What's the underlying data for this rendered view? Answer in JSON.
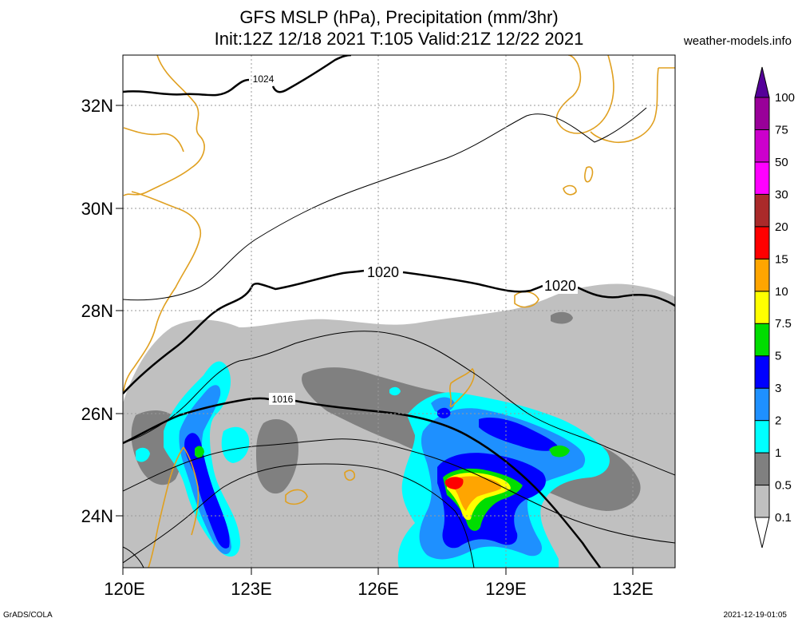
{
  "title_line1": "GFS MSLP (hPa), Precipitation (mm/3hr)",
  "title_line2": "Init:12Z 12/18 2021 T:105 Valid:21Z 12/22 2021",
  "site": "weather-models.info",
  "footer_left": "GrADS/COLA",
  "footer_right": "2021-12-19-01:05",
  "axes": {
    "lat_ticks": [
      "32N",
      "30N",
      "28N",
      "26N",
      "24N"
    ],
    "lon_ticks": [
      "120E",
      "123E",
      "126E",
      "129E",
      "132E"
    ]
  },
  "contour_labels": [
    "1024",
    "1020",
    "1020",
    "1016"
  ],
  "colorbar": {
    "levels": [
      "100",
      "75",
      "50",
      "30",
      "20",
      "15",
      "10",
      "7.5",
      "5",
      "3",
      "2",
      "1",
      "0.5",
      "0.1"
    ],
    "colors": [
      "#ffffff",
      "#c0c0c0",
      "#808080",
      "#00ffff",
      "#1e90ff",
      "#0000ff",
      "#00dd00",
      "#ffff00",
      "#ffa500",
      "#ff0000",
      "#aa2a2a",
      "#ff00ff",
      "#cc00cc",
      "#990099",
      "#550099"
    ]
  }
}
